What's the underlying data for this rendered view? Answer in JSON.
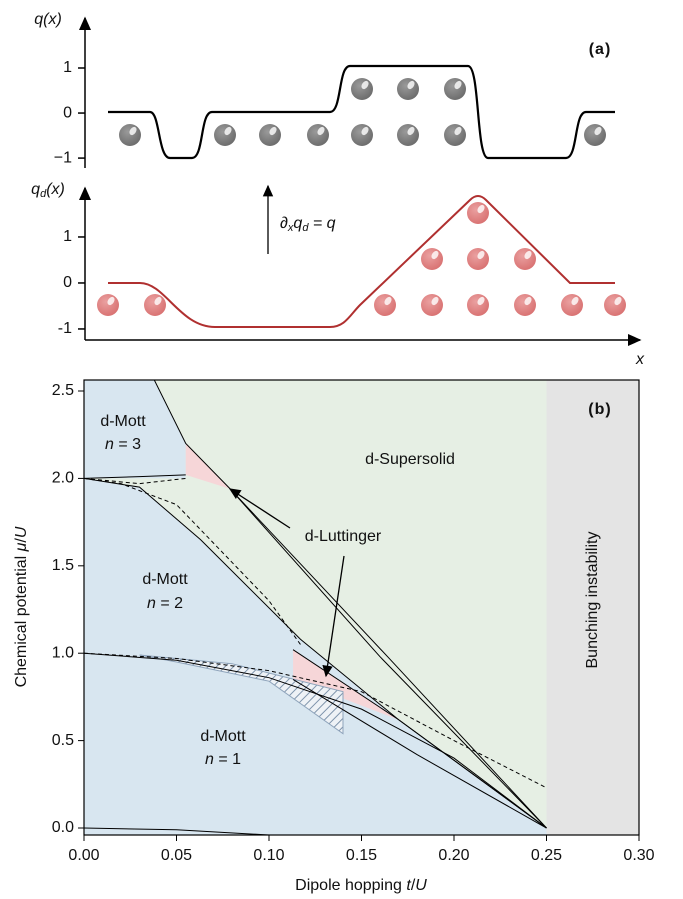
{
  "chart_data": [
    {
      "type": "line",
      "ylabel": [
        "q(x)"
      ],
      "annotation": "(a)",
      "ylim": [
        -1.22,
        2.11
      ],
      "yticks": [
        1,
        0,
        {
          "value": -1,
          "label": "−1"
        }
      ]
    },
    {
      "type": "line",
      "ylabel": [
        "q",
        "d",
        "(x)"
      ],
      "xlabel": "x",
      "annotation": [
        "∂",
        "x",
        "q",
        "d",
        " = q"
      ],
      "ylim": [
        -1.24,
        2.13
      ],
      "yticks": [
        1,
        0,
        -1
      ]
    },
    {
      "type": "phase",
      "title": "(b)",
      "xlabel": [
        "Dipole hopping ",
        "t",
        "/",
        "U"
      ],
      "ylabel": [
        "Chemical potential ",
        "μ",
        "/",
        "U"
      ],
      "xlim": [
        0,
        0.3
      ],
      "ylim": [
        -0.04,
        2.563
      ],
      "xticks": [
        {
          "value": 0,
          "label": "0.00"
        },
        {
          "value": 0.05,
          "label": "0.05"
        },
        {
          "value": 0.1,
          "label": "0.10"
        },
        {
          "value": 0.15,
          "label": "0.15"
        },
        {
          "value": 0.2,
          "label": "0.20"
        },
        {
          "value": 0.25,
          "label": "0.25"
        },
        {
          "value": 0.3,
          "label": "0.30"
        }
      ],
      "yticks": [
        {
          "value": 0,
          "label": "0.0"
        },
        0.5,
        {
          "value": 1,
          "label": "1.0"
        },
        1.5,
        {
          "value": 2,
          "label": "2.0"
        },
        2.5
      ],
      "labels": {
        "mott3": [
          "d-Mott",
          "n",
          " = 3"
        ],
        "supersolid": "d-Supersolid",
        "luttinger": "d-Luttinger",
        "mott2": [
          "d-Mott",
          "n",
          " = 2"
        ],
        "mott1": [
          "d-Mott",
          "n",
          " = 1"
        ],
        "bunching": "Bunching instability"
      },
      "background": "#d8e6f0",
      "regions": [
        {
          "color": "#e6efe4",
          "x": [
            0.038,
            0.25,
            0.25,
            0.17,
            0.117,
            0.063,
            0.03,
            0,
            0.055,
            0.055
          ],
          "values": [
            2.563,
            2.563,
            0,
            0.62,
            1.08,
            1.65,
            1.95,
            2.0,
            2.0,
            2.2
          ]
        },
        {
          "color": "#e4e4e4",
          "x": [
            0.25,
            0.3,
            0.3,
            0.25
          ],
          "values": [
            -0.04,
            -0.04,
            2.563,
            2.563
          ]
        },
        {
          "color": "#f6d6d8",
          "x": [
            0.055,
            0.055,
            0.079
          ],
          "values": [
            2.2,
            2.02,
            1.94
          ]
        },
        {
          "color": "#f6d6d8",
          "x": [
            0.113,
            0.113,
            0.17
          ],
          "values": [
            1.02,
            0.85,
            0.62
          ]
        },
        {
          "color": "#8fa4bb",
          "hatch": true,
          "x": [
            0.03,
            0.08,
            0.14,
            0.14,
            0.1,
            0.05
          ],
          "values": [
            0.99,
            0.94,
            0.78,
            0.54,
            0.84,
            0.95
          ]
        }
      ],
      "series": [
        {
          "color": "#000000",
          "dashed": false,
          "x": [
            0,
            0.05,
            0.1
          ],
          "values": [
            0,
            -0.01,
            -0.04
          ]
        },
        {
          "color": "#000000",
          "dashed": false,
          "x": [
            0,
            0.05,
            0.1,
            0.15,
            0.2,
            0.25
          ],
          "values": [
            1.0,
            0.96,
            0.86,
            0.68,
            0.4,
            0
          ]
        },
        {
          "color": "#000000",
          "dashed": false,
          "x": [
            0,
            0.03,
            0.063,
            0.117,
            0.17,
            0.25
          ],
          "values": [
            2.0,
            1.95,
            1.65,
            1.08,
            0.62,
            0
          ]
        },
        {
          "color": "#000000",
          "dashed": false,
          "x": [
            0.038,
            0.055,
            0.079,
            0.165,
            0.25
          ],
          "values": [
            2.563,
            2.2,
            1.94,
            0.97,
            0
          ]
        },
        {
          "color": "#000000",
          "dashed": false,
          "x": [
            0.079,
            0.16,
            0.25
          ],
          "values": [
            1.94,
            0.98,
            0
          ]
        },
        {
          "color": "#000000",
          "dashed": false,
          "x": [
            0.113,
            0.17,
            0.25
          ],
          "values": [
            1.02,
            0.62,
            0
          ]
        },
        {
          "color": "#000000",
          "dashed": false,
          "x": [
            0.113,
            0.18,
            0.25
          ],
          "values": [
            0.85,
            0.42,
            0
          ]
        },
        {
          "color": "#000000",
          "dashed": false,
          "x": [
            0,
            0.03,
            0.055
          ],
          "values": [
            2.0,
            2.01,
            2.02
          ]
        },
        {
          "color": "#000000",
          "dashed": true,
          "x": [
            0,
            0.02,
            0.05,
            0.1,
            0.117
          ],
          "values": [
            2.0,
            1.97,
            1.85,
            1.3,
            1.05
          ]
        },
        {
          "color": "#000000",
          "dashed": true,
          "x": [
            0,
            0.03,
            0.055
          ],
          "values": [
            2.0,
            1.97,
            2.0
          ]
        },
        {
          "color": "#000000",
          "dashed": true,
          "x": [
            0,
            0.05,
            0.1,
            0.15,
            0.2,
            0.25
          ],
          "values": [
            1.0,
            0.97,
            0.9,
            0.78,
            0.5,
            0.23
          ]
        }
      ]
    }
  ]
}
